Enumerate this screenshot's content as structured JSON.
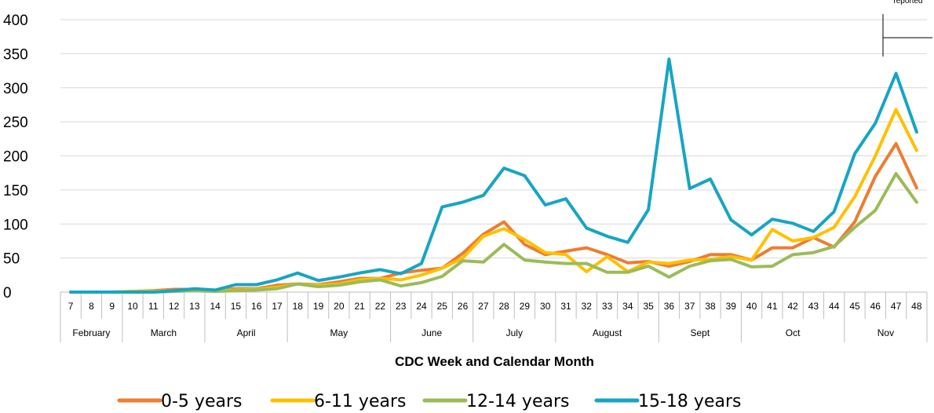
{
  "chart_data": {
    "type": "line",
    "title": "",
    "xlabel": "CDC Week and Calendar Month",
    "ylabel": "",
    "ylim": [
      0,
      400
    ],
    "yticks": [
      0,
      50,
      100,
      150,
      200,
      250,
      300,
      350,
      400
    ],
    "grid": true,
    "legend_position": "bottom",
    "x": [
      "7",
      "8",
      "9",
      "10",
      "11",
      "12",
      "13",
      "14",
      "15",
      "16",
      "17",
      "18",
      "19",
      "20",
      "21",
      "22",
      "23",
      "24",
      "25",
      "26",
      "27",
      "28",
      "29",
      "30",
      "31",
      "32",
      "33",
      "34",
      "35",
      "36",
      "37",
      "38",
      "39",
      "40",
      "41",
      "42",
      "43",
      "44",
      "45",
      "46",
      "47",
      "48"
    ],
    "months": [
      {
        "label": "February",
        "weeks": 3
      },
      {
        "label": "March",
        "weeks": 4
      },
      {
        "label": "April",
        "weeks": 4
      },
      {
        "label": "May",
        "weeks": 5
      },
      {
        "label": "June",
        "weeks": 4
      },
      {
        "label": "July",
        "weeks": 4
      },
      {
        "label": "August",
        "weeks": 5
      },
      {
        "label": "Sept",
        "weeks": 4
      },
      {
        "label": "Oct",
        "weeks": 5
      },
      {
        "label": "Nov",
        "weeks": 4
      }
    ],
    "annotation": "reported",
    "series": [
      {
        "name": "0-5 years",
        "color": "#ED7D31",
        "values": [
          0,
          0,
          0,
          1,
          2,
          4,
          4,
          2,
          5,
          5,
          10,
          12,
          11,
          15,
          20,
          20,
          28,
          32,
          35,
          57,
          85,
          103,
          70,
          55,
          60,
          65,
          55,
          43,
          45,
          38,
          45,
          55,
          55,
          47,
          65,
          65,
          80,
          66,
          103,
          170,
          218,
          153
        ]
      },
      {
        "name": "6-11 years",
        "color": "#FFC000",
        "values": [
          0,
          0,
          0,
          1,
          1,
          2,
          3,
          2,
          3,
          4,
          7,
          12,
          10,
          12,
          18,
          20,
          18,
          25,
          35,
          50,
          82,
          93,
          77,
          58,
          55,
          30,
          52,
          30,
          44,
          42,
          47,
          48,
          52,
          47,
          92,
          75,
          80,
          95,
          140,
          200,
          268,
          208
        ]
      },
      {
        "name": "12-14 years",
        "color": "#9BBB59",
        "values": [
          0,
          0,
          0,
          0,
          0,
          1,
          2,
          1,
          2,
          3,
          5,
          12,
          8,
          10,
          15,
          18,
          9,
          14,
          23,
          46,
          44,
          70,
          47,
          44,
          42,
          42,
          29,
          29,
          38,
          22,
          38,
          46,
          48,
          37,
          38,
          55,
          58,
          67,
          95,
          120,
          174,
          132
        ]
      },
      {
        "name": "15-18 years",
        "color": "#17A5C2",
        "values": [
          0,
          0,
          0,
          0,
          0,
          2,
          5,
          3,
          11,
          11,
          18,
          28,
          17,
          22,
          28,
          33,
          27,
          42,
          125,
          132,
          142,
          182,
          171,
          128,
          137,
          94,
          82,
          73,
          121,
          342,
          152,
          166,
          106,
          84,
          107,
          101,
          89,
          118,
          203,
          248,
          321,
          235
        ]
      }
    ]
  }
}
